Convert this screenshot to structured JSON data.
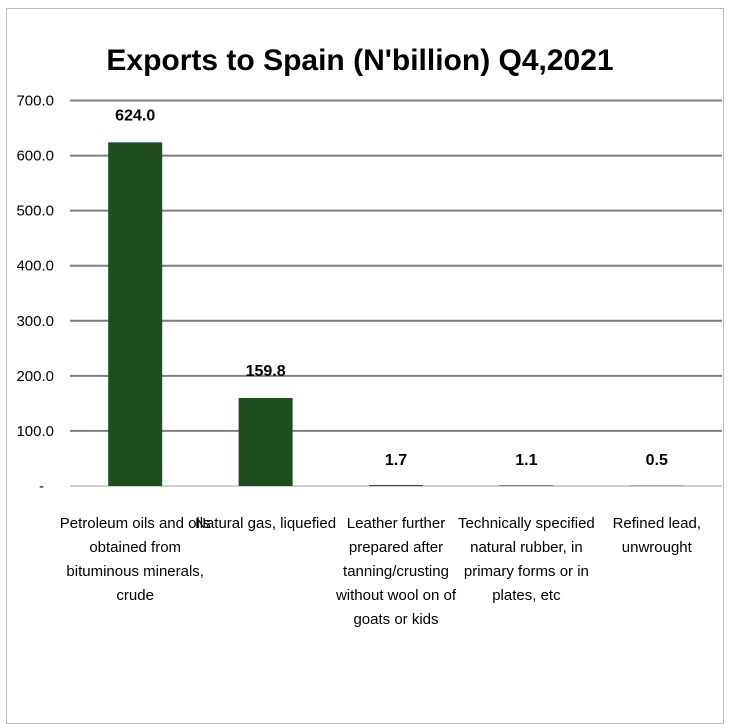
{
  "chart_data": {
    "type": "bar",
    "title": "Exports to Spain (N'billion) Q4,2021",
    "xlabel": "",
    "ylabel": "",
    "categories": [
      [
        "Petroleum oils and oils",
        "obtained from",
        "bituminous minerals,",
        "crude"
      ],
      [
        "Natural gas, liquefied"
      ],
      [
        "Leather further",
        "prepared after",
        "tanning/crusting",
        "without wool on of",
        "goats or kids"
      ],
      [
        "Technically specified",
        "natural rubber, in",
        "primary forms or in",
        "plates, etc"
      ],
      [
        "Refined lead,",
        "unwrought"
      ]
    ],
    "values": [
      624.0,
      159.8,
      1.7,
      1.1,
      0.5
    ],
    "data_labels": [
      "624.0",
      "159.8",
      "1.7",
      "1.1",
      "0.5"
    ],
    "ylim": [
      0,
      700
    ],
    "yticks": [
      "-",
      "100.0",
      "200.0",
      "300.0",
      "400.0",
      "500.0",
      "600.0",
      "700.0"
    ],
    "grid": true,
    "legend": "none",
    "bar_color": "#1e4d1e",
    "gridline_color": "#7f7f7f"
  }
}
